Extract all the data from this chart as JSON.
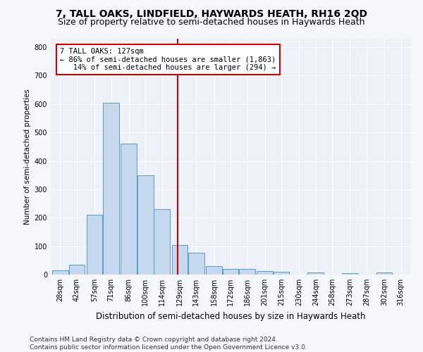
{
  "title": "7, TALL OAKS, LINDFIELD, HAYWARDS HEATH, RH16 2QD",
  "subtitle": "Size of property relative to semi-detached houses in Haywards Heath",
  "xlabel": "Distribution of semi-detached houses by size in Haywards Heath",
  "ylabel": "Number of semi-detached properties",
  "footnote1": "Contains HM Land Registry data © Crown copyright and database right 2024.",
  "footnote2": "Contains public sector information licensed under the Open Government Licence v3.0.",
  "bin_labels": [
    "28sqm",
    "42sqm",
    "57sqm",
    "71sqm",
    "86sqm",
    "100sqm",
    "114sqm",
    "129sqm",
    "143sqm",
    "158sqm",
    "172sqm",
    "186sqm",
    "201sqm",
    "215sqm",
    "230sqm",
    "244sqm",
    "258sqm",
    "273sqm",
    "287sqm",
    "302sqm",
    "316sqm"
  ],
  "bar_heights": [
    15,
    35,
    210,
    605,
    460,
    350,
    230,
    103,
    77,
    30,
    20,
    20,
    12,
    10,
    0,
    7,
    0,
    5,
    0,
    7,
    0
  ],
  "bar_color": "#c5d8ed",
  "bar_edge_color": "#5a9cc5",
  "bin_centers": [
    28,
    42,
    57,
    71,
    86,
    100,
    114,
    129,
    143,
    158,
    172,
    186,
    201,
    215,
    230,
    244,
    258,
    273,
    287,
    302,
    316
  ],
  "bin_width": 13.5,
  "property_sqm": 127,
  "smaller_pct": 86,
  "smaller_count": "1,863",
  "larger_pct": 14,
  "larger_count": 294,
  "annotation_box_facecolor": "#ffffff",
  "annotation_box_edgecolor": "#cc0000",
  "line_color": "#cc0000",
  "ylim": [
    0,
    830
  ],
  "yticks": [
    0,
    100,
    200,
    300,
    400,
    500,
    600,
    700,
    800
  ],
  "xlim_left": 20,
  "xlim_right": 324,
  "bg_color": "#eef2f8",
  "grid_color": "#ffffff",
  "fig_facecolor": "#f5f7fb",
  "title_fontsize": 10,
  "subtitle_fontsize": 9,
  "xlabel_fontsize": 8.5,
  "ylabel_fontsize": 7.5,
  "tick_fontsize": 7,
  "annot_fontsize": 7.5,
  "footnote_fontsize": 6.5
}
